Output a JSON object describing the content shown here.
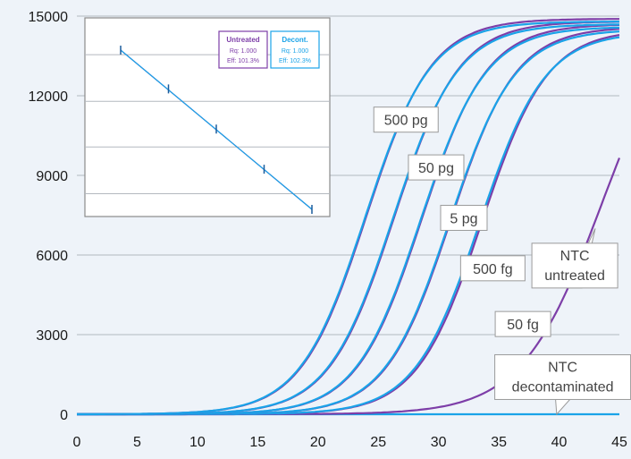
{
  "chart_data": {
    "type": "line",
    "xlabel": "",
    "ylabel": "",
    "xlim": [
      0,
      45
    ],
    "ylim": [
      0,
      15000
    ],
    "x_ticks": [
      0,
      5,
      10,
      15,
      20,
      25,
      30,
      35,
      40,
      45
    ],
    "y_ticks": [
      0,
      3000,
      6000,
      9000,
      12000,
      15000
    ],
    "grid": "horizontal",
    "series": [
      {
        "label": "500 pg",
        "color": "#1aa3e8",
        "midpoint": 23.9,
        "plateau": 14800,
        "slope": 0.37
      },
      {
        "label": "500 pg",
        "color": "#7d3ea8",
        "midpoint": 24.0,
        "plateau": 14900,
        "slope": 0.37
      },
      {
        "label": "50 pg",
        "color": "#1aa3e8",
        "midpoint": 26.2,
        "plateau": 14700,
        "slope": 0.37
      },
      {
        "label": "50 pg",
        "color": "#7d3ea8",
        "midpoint": 26.3,
        "plateau": 14800,
        "slope": 0.37
      },
      {
        "label": "5 pg",
        "color": "#1aa3e8",
        "midpoint": 28.5,
        "plateau": 14600,
        "slope": 0.37
      },
      {
        "label": "5 pg",
        "color": "#7d3ea8",
        "midpoint": 28.6,
        "plateau": 14700,
        "slope": 0.37
      },
      {
        "label": "500 fg",
        "color": "#1aa3e8",
        "midpoint": 30.9,
        "plateau": 14500,
        "slope": 0.37
      },
      {
        "label": "500 fg",
        "color": "#7d3ea8",
        "midpoint": 31.0,
        "plateau": 14600,
        "slope": 0.37
      },
      {
        "label": "50 fg",
        "color": "#1aa3e8",
        "midpoint": 33.4,
        "plateau": 14400,
        "slope": 0.37
      },
      {
        "label": "50 fg",
        "color": "#7d3ea8",
        "midpoint": 33.6,
        "plateau": 14500,
        "slope": 0.37
      },
      {
        "label": "NTC untreated",
        "color": "#7d3ea8",
        "midpoint": 43.6,
        "plateau": 16000,
        "slope": 0.3
      },
      {
        "label": "NTC decontaminated",
        "color": "#1aa3e8",
        "midpoint": 90,
        "plateau": 100,
        "slope": 0.1
      }
    ],
    "labels": [
      {
        "text": "500 pg",
        "x": 27.3,
        "y": 11100
      },
      {
        "text": "50 pg",
        "x": 29.8,
        "y": 9300
      },
      {
        "text": "5 pg",
        "x": 32.1,
        "y": 7400
      },
      {
        "text": "500 fg",
        "x": 34.5,
        "y": 5500
      },
      {
        "text": "50 fg",
        "x": 37.0,
        "y": 3400
      },
      {
        "text": "NTC\nuntreated",
        "x": 41.3,
        "y": 5600
      },
      {
        "text": "NTC\ndecontaminated",
        "x": 40.3,
        "y": 1400
      }
    ],
    "inset": {
      "type": "scatter",
      "points": [
        [
          1,
          13700
        ],
        [
          2,
          12250
        ],
        [
          3,
          10750
        ],
        [
          4,
          9250
        ],
        [
          5,
          7750
        ]
      ],
      "legend": [
        {
          "title": "Untreated",
          "rq": "Rq: 1.000",
          "eff": "Eff: 101.3%",
          "color": "#7d3ea8"
        },
        {
          "title": "Decont.",
          "rq": "Rq: 1.000",
          "eff": "Eff: 102.3%",
          "color": "#1aa3e8"
        }
      ]
    }
  }
}
